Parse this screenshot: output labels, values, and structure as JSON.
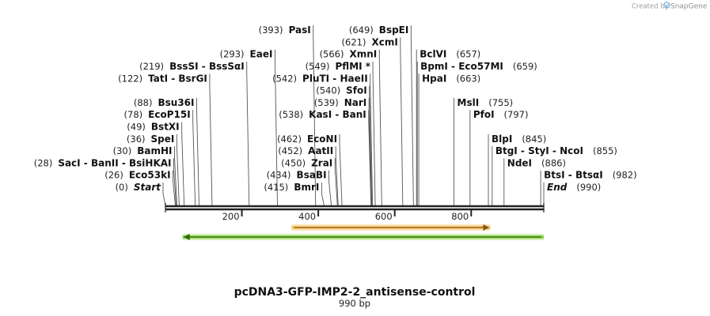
{
  "title": "pcDNA3-GFP-IMP2-2_antisense-control",
  "subtitle": "990 bp",
  "sequence_length": 990,
  "credit": {
    "prefix": "Created by",
    "brand": "SnapGene"
  },
  "colors": {
    "backbone": "#222222",
    "feature_orange_fill": "#f6c97b",
    "feature_orange_edge": "#ffe4b0",
    "feature_orange_arrow": "#8a5a10",
    "feature_green_fill": "#8fd14f",
    "feature_green_edge": "#d3f1b6",
    "feature_green_arrow": "#2f6b10",
    "label_leader": "#555555"
  },
  "ruler": {
    "ticks": [
      {
        "pos": 200,
        "label": "200"
      },
      {
        "pos": 400,
        "label": "400"
      },
      {
        "pos": 600,
        "label": "600"
      },
      {
        "pos": 800,
        "label": "800"
      }
    ]
  },
  "features": [
    {
      "name": "orange-feature",
      "start": 330,
      "end": 850,
      "direction": "forward",
      "color": "orange"
    },
    {
      "name": "green-feature",
      "start": 45,
      "end": 990,
      "direction": "reverse",
      "color": "green"
    }
  ],
  "left_labels": [
    {
      "pos_label": "(0)",
      "name": "Start",
      "special": true,
      "site": 0,
      "row": 0
    },
    {
      "pos_label": "(26)",
      "name": "Eco53kI",
      "site": 26,
      "row": 1
    },
    {
      "pos_label": "(28)",
      "name": "SacI  - BanII  - BsiHKAI",
      "site": 28,
      "row": 2
    },
    {
      "pos_label": "(30)",
      "name": "BamHI",
      "site": 30,
      "row": 3
    },
    {
      "pos_label": "(36)",
      "name": "SpeI",
      "site": 36,
      "row": 4
    },
    {
      "pos_label": "(49)",
      "name": "BstXI",
      "site": 49,
      "row": 5
    },
    {
      "pos_label": "(78)",
      "name": "EcoP15I",
      "site": 78,
      "row": 6
    },
    {
      "pos_label": "(88)",
      "name": "Bsu36I",
      "site": 88,
      "row": 7
    },
    {
      "pos_label": "(122)",
      "name": "TatI  - BsrGI",
      "site": 122,
      "row": 9
    },
    {
      "pos_label": "(219)",
      "name": "BssSI  - BssSαI",
      "site": 219,
      "row": 10
    },
    {
      "pos_label": "(293)",
      "name": "EaeI",
      "site": 293,
      "row": 11
    },
    {
      "pos_label": "(393)",
      "name": "PasI",
      "site": 393,
      "row": 13
    },
    {
      "pos_label": "(415)",
      "name": "BmrI",
      "site": 415,
      "row": 0
    },
    {
      "pos_label": "(434)",
      "name": "BsaBI",
      "site": 434,
      "row": 1
    },
    {
      "pos_label": "(450)",
      "name": "ZraI",
      "site": 450,
      "row": 2
    },
    {
      "pos_label": "(452)",
      "name": "AatII",
      "site": 452,
      "row": 3
    },
    {
      "pos_label": "(462)",
      "name": "EcoNI",
      "site": 462,
      "row": 4
    },
    {
      "pos_label": "(538)",
      "name": "KasI  - BanI",
      "site": 538,
      "row": 6
    },
    {
      "pos_label": "(539)",
      "name": "NarI",
      "site": 539,
      "row": 7
    },
    {
      "pos_label": "(540)",
      "name": "SfoI",
      "site": 540,
      "row": 8
    },
    {
      "pos_label": "(542)",
      "name": "PluTI  - HaeII",
      "site": 542,
      "row": 9
    },
    {
      "pos_label": "(549)",
      "name": "PflMI *",
      "site": 549,
      "row": 10
    },
    {
      "pos_label": "(566)",
      "name": "XmnI",
      "site": 566,
      "row": 11
    },
    {
      "pos_label": "(621)",
      "name": "XcmI",
      "site": 621,
      "row": 12
    },
    {
      "pos_label": "(649)",
      "name": "BspEI",
      "site": 649,
      "row": 13
    }
  ],
  "right_labels": [
    {
      "pos_label": "(990)",
      "name": "End",
      "special": true,
      "site": 990,
      "row": 0
    },
    {
      "pos_label": "(982)",
      "name": "BtsI  - BtsαI",
      "site": 982,
      "row": 1
    },
    {
      "pos_label": "(886)",
      "name": "NdeI",
      "site": 886,
      "row": 2
    },
    {
      "pos_label": "(855)",
      "name": "BtgI  - StyI  - NcoI",
      "site": 855,
      "row": 3
    },
    {
      "pos_label": "(845)",
      "name": "BlpI",
      "site": 845,
      "row": 4
    },
    {
      "pos_label": "(797)",
      "name": "PfoI",
      "site": 797,
      "row": 6
    },
    {
      "pos_label": "(755)",
      "name": "MslI",
      "site": 755,
      "row": 7
    },
    {
      "pos_label": "(663)",
      "name": "HpaI",
      "site": 663,
      "row": 9
    },
    {
      "pos_label": "(659)",
      "name": "BpmI  - Eco57MI",
      "site": 659,
      "row": 10
    },
    {
      "pos_label": "(657)",
      "name": "BclVI",
      "site": 657,
      "row": 11
    }
  ]
}
